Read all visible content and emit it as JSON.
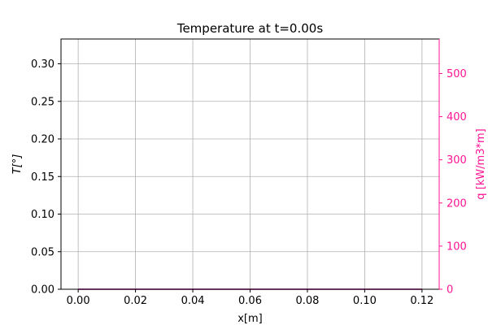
{
  "chart_data": {
    "type": "line",
    "title": "Temperature at t=0.00s",
    "xlabel": "x[m]",
    "ylabel_left": "T[°]",
    "ylabel_right": "q [kW/m3*m]",
    "xlim": [
      -0.006,
      0.126
    ],
    "ylim_left": [
      0.0,
      0.333
    ],
    "ylim_right": [
      0,
      580
    ],
    "x_ticks": [
      0.0,
      0.02,
      0.04,
      0.06,
      0.08,
      0.1,
      0.12
    ],
    "x_tick_labels": [
      "0.00",
      "0.02",
      "0.04",
      "0.06",
      "0.08",
      "0.10",
      "0.12"
    ],
    "y_left_ticks": [
      0.0,
      0.05,
      0.1,
      0.15,
      0.2,
      0.25,
      0.3
    ],
    "y_left_tick_labels": [
      "0.00",
      "0.05",
      "0.10",
      "0.15",
      "0.20",
      "0.25",
      "0.30"
    ],
    "y_right_ticks": [
      0,
      100,
      200,
      300,
      400,
      500
    ],
    "y_right_tick_labels": [
      "0",
      "100",
      "200",
      "300",
      "400",
      "500"
    ],
    "grid": true,
    "series": [
      {
        "axis": "left",
        "color": "#1f77b4",
        "x": [
          0.0,
          0.12
        ],
        "y": [
          0.0,
          0.0
        ]
      },
      {
        "axis": "right",
        "color": "#ff1493",
        "x": [
          0.0,
          0.12
        ],
        "y": [
          0,
          0
        ]
      }
    ],
    "colors": {
      "right_axis": "#ff1493",
      "grid": "#b0b0b0"
    }
  }
}
